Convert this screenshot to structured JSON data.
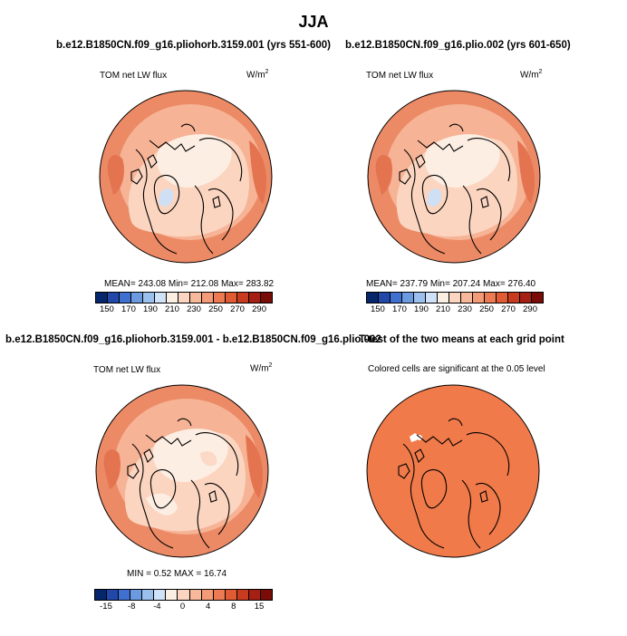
{
  "main_title": "JJA",
  "panels": {
    "top_left": {
      "title": "b.e12.B1850CN.f09_g16.pliohorb.3159.001 (yrs 551-600)",
      "field_label": "TOM net LW flux",
      "units": "W/m",
      "units_sup": "2",
      "stats": "MEAN=  243.08   Min=  212.08   Max=  283.82"
    },
    "top_right": {
      "title": "b.e12.B1850CN.f09_g16.plio.002 (yrs 601-650)",
      "field_label": "TOM net LW flux",
      "units": "W/m",
      "units_sup": "2",
      "stats": "MEAN=  237.79   Min=  207.24   Max=  276.40"
    },
    "bottom_left": {
      "title": "b.e12.B1850CN.f09_g16.pliohorb.3159.001 - b.e12.B1850CN.f09_g16.plio.002",
      "field_label": "TOM net LW flux",
      "units": "W/m",
      "units_sup": "2",
      "stats": "MIN =      0.52  MAX =   16.74"
    },
    "bottom_right": {
      "title": "T-test of the two means at each grid point",
      "field_label": "Colored cells are significant at the 0.05 level"
    }
  },
  "colorbar_top": {
    "colors": [
      "#06266b",
      "#2147a8",
      "#3f6fcf",
      "#6c9ae0",
      "#9cc0ee",
      "#cfe2f7",
      "#fbeee3",
      "#fbd5c0",
      "#f8b89a",
      "#f39b76",
      "#ec7a53",
      "#e05b34",
      "#c93b1e",
      "#a51f13",
      "#7a0c08"
    ],
    "tick_labels": [
      "150",
      "170",
      "190",
      "210",
      "230",
      "250",
      "270",
      "290"
    ]
  },
  "colorbar_bottom": {
    "colors": [
      "#06266b",
      "#2147a8",
      "#3f6fcf",
      "#6c9ae0",
      "#9cc0ee",
      "#cfe2f7",
      "#fbeee3",
      "#fbd5c0",
      "#f8b89a",
      "#f39b76",
      "#ec7a53",
      "#e05b34",
      "#c93b1e",
      "#a51f13",
      "#7a0c08"
    ],
    "tick_labels": [
      "-15",
      "-8",
      "-4",
      "0",
      "4",
      "8",
      "15"
    ]
  },
  "map_colors": {
    "ocean_warm": "#ec8a66",
    "mid": "#f6b395",
    "light": "#fbd5c0",
    "pale": "#fdeee3",
    "blue": "#cfe0f5",
    "significant": "#f07a4a",
    "coast": "#000000"
  }
}
